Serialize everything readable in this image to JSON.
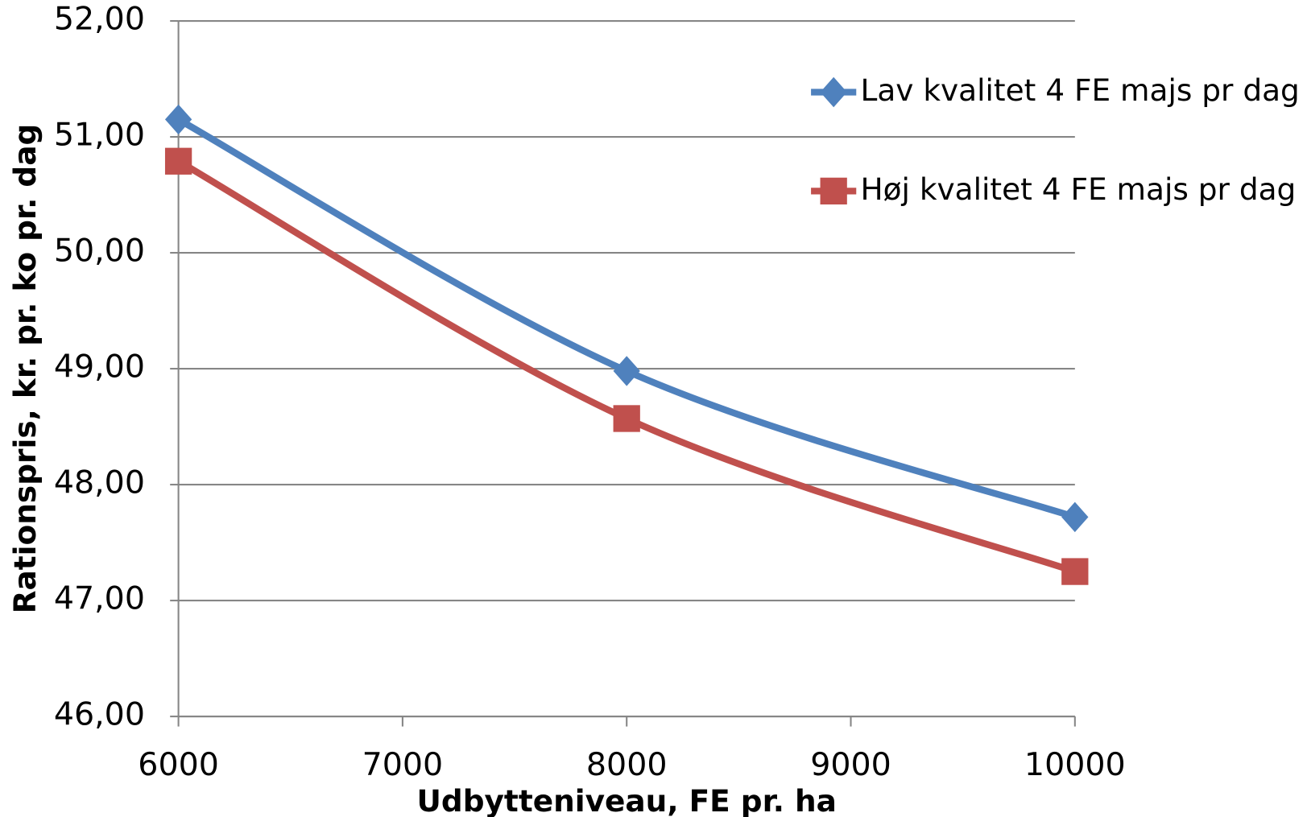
{
  "chart_data": {
    "type": "line",
    "x_label": "Udbytteniveau, FE pr. ha",
    "y_label": "Rationspris, kr. pr. ko pr. dag",
    "x": [
      6000,
      8000,
      10000
    ],
    "series": [
      {
        "name": "Lav kvalitet 4 FE majs pr dag",
        "color": "#4f81bd",
        "marker": "diamond",
        "values": [
          51.15,
          48.98,
          47.72
        ]
      },
      {
        "name": "Høj kvalitet 4 FE majs pr dag",
        "color": "#c0504d",
        "marker": "square",
        "values": [
          50.79,
          48.57,
          47.25
        ]
      }
    ],
    "xlim": [
      6000,
      10000
    ],
    "xticks": [
      6000,
      7000,
      8000,
      9000,
      10000
    ],
    "ylim": [
      46,
      52
    ],
    "yticks": [
      {
        "value": 46,
        "label": "46,00"
      },
      {
        "value": 47,
        "label": "47,00"
      },
      {
        "value": 48,
        "label": "48,00"
      },
      {
        "value": 49,
        "label": "49,00"
      },
      {
        "value": 50,
        "label": "50,00"
      },
      {
        "value": 51,
        "label": "51,00"
      },
      {
        "value": 52,
        "label": "52,00"
      }
    ],
    "grid": true,
    "legend": "right"
  }
}
